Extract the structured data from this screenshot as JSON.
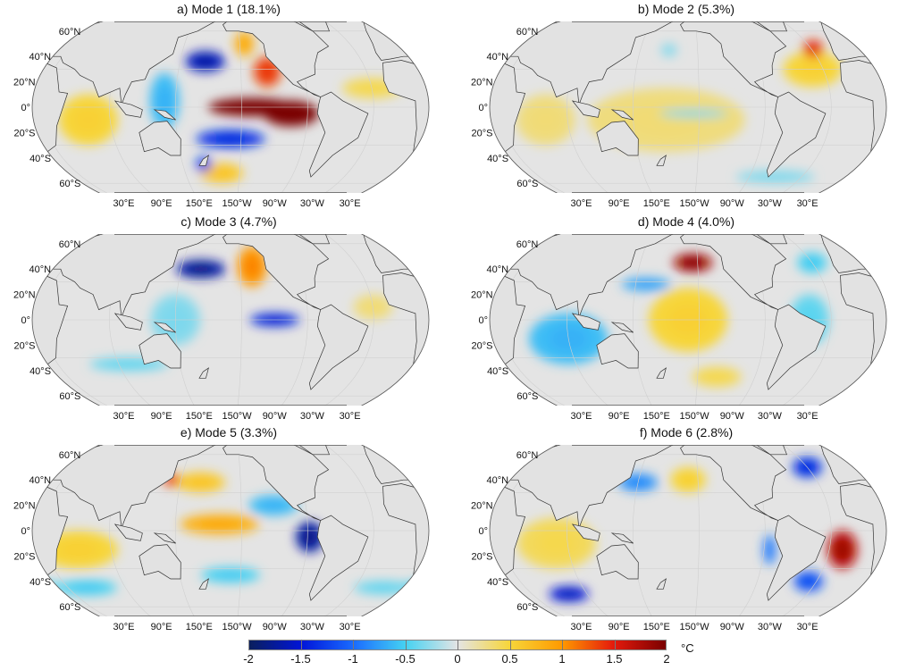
{
  "panels": [
    {
      "title": "a) Mode 1 (18.1%)",
      "patterns": [
        [
          220,
          0,
          2.0,
          45,
          7
        ],
        [
          255,
          -5,
          2.0,
          28,
          10
        ],
        [
          235,
          28,
          1.3,
          14,
          12
        ],
        [
          215,
          50,
          0.8,
          10,
          10
        ],
        [
          175,
          36,
          -1.6,
          20,
          8
        ],
        [
          200,
          -25,
          -1.3,
          35,
          7
        ],
        [
          140,
          5,
          -0.6,
          15,
          22
        ],
        [
          172,
          -45,
          -1.2,
          8,
          6
        ],
        [
          70,
          -10,
          0.5,
          30,
          20
        ],
        [
          330,
          15,
          0.4,
          30,
          8
        ],
        [
          190,
          -52,
          0.6,
          22,
          8
        ]
      ]
    },
    {
      "title": "b) Mode 2 (5.3%)",
      "patterns": [
        [
          332,
          46,
          1.4,
          10,
          7
        ],
        [
          320,
          30,
          0.5,
          30,
          14
        ],
        [
          180,
          -10,
          0.3,
          80,
          25
        ],
        [
          205,
          -5,
          -0.35,
          35,
          3
        ],
        [
          180,
          45,
          -0.3,
          8,
          5
        ],
        [
          70,
          -10,
          0.3,
          30,
          20
        ],
        [
          300,
          -55,
          -0.3,
          40,
          5
        ]
      ]
    },
    {
      "title": "c) Mode 3 (4.7%)",
      "patterns": [
        [
          170,
          40,
          -1.7,
          25,
          7
        ],
        [
          222,
          42,
          1.0,
          15,
          16
        ],
        [
          240,
          0,
          -1.4,
          25,
          5
        ],
        [
          100,
          -35,
          -0.4,
          40,
          5
        ],
        [
          330,
          10,
          0.3,
          20,
          10
        ],
        [
          150,
          0,
          -0.3,
          25,
          20
        ]
      ]
    },
    {
      "title": "d) Mode 4 (4.0%)",
      "patterns": [
        [
          205,
          45,
          1.8,
          20,
          7
        ],
        [
          160,
          28,
          -0.7,
          25,
          5
        ],
        [
          200,
          0,
          0.5,
          40,
          25
        ],
        [
          90,
          -15,
          -0.6,
          40,
          20
        ],
        [
          330,
          45,
          -0.5,
          15,
          8
        ],
        [
          310,
          0,
          -0.4,
          20,
          20
        ],
        [
          230,
          -45,
          0.4,
          25,
          8
        ]
      ]
    },
    {
      "title": "e) Mode 5 (3.3%)",
      "patterns": [
        [
          140,
          40,
          1.3,
          8,
          5
        ],
        [
          170,
          38,
          0.6,
          25,
          8
        ],
        [
          190,
          5,
          0.8,
          40,
          8
        ],
        [
          272,
          -5,
          -1.7,
          14,
          12
        ],
        [
          240,
          20,
          -0.6,
          25,
          8
        ],
        [
          60,
          -15,
          0.5,
          40,
          15
        ],
        [
          50,
          -45,
          -0.5,
          30,
          6
        ],
        [
          0,
          -45,
          -0.4,
          30,
          5
        ],
        [
          200,
          -35,
          -0.5,
          30,
          6
        ]
      ]
    },
    {
      "title": "f) Mode 6 (2.8%)",
      "patterns": [
        [
          342,
          -15,
          1.7,
          15,
          15
        ],
        [
          322,
          -40,
          -1.1,
          15,
          8
        ],
        [
          330,
          50,
          -1.3,
          15,
          8
        ],
        [
          70,
          -50,
          -1.5,
          20,
          6
        ],
        [
          150,
          38,
          -0.8,
          20,
          7
        ],
        [
          200,
          40,
          0.5,
          18,
          10
        ],
        [
          80,
          -10,
          0.4,
          40,
          20
        ],
        [
          275,
          -15,
          -0.9,
          6,
          12
        ]
      ]
    }
  ],
  "lat_labels": [
    "60°N",
    "40°N",
    "20°N",
    "0°",
    "20°S",
    "40°S",
    "60°S"
  ],
  "lon_labels": [
    "30°E",
    "90°E",
    "150°E",
    "150°W",
    "90°W",
    "30°W",
    "30°E"
  ],
  "colorbar": {
    "ticks": [
      "-2",
      "-1.5",
      "-1",
      "-0.5",
      "0",
      "0.5",
      "1",
      "1.5",
      "2"
    ],
    "unit": "°C",
    "range": [
      -2,
      2
    ],
    "colors": [
      "#0a1f5c",
      "#0015d8",
      "#1a6bff",
      "#45d2f2",
      "#e4e4e4",
      "#f7d63a",
      "#ff9a00",
      "#e41a0c",
      "#7a0000"
    ]
  },
  "colors": {
    "land": "#e2e2e2",
    "ocean_neutral": "#e4e4e4",
    "coast": "#333333"
  }
}
